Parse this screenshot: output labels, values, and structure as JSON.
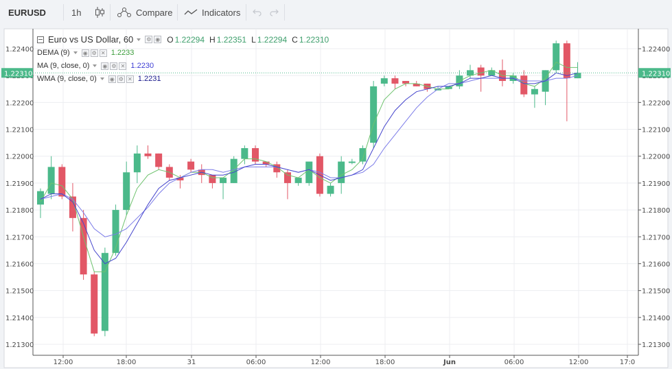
{
  "toolbar": {
    "symbol": "EURUSD",
    "interval": "1h",
    "compare_label": "Compare",
    "indicators_label": "Indicators"
  },
  "legend": {
    "title": "Euro vs US Dollar, 60",
    "o_label": "O",
    "o_value": "1.22294",
    "h_label": "H",
    "h_value": "1.22351",
    "l_label": "L",
    "l_value": "1.22294",
    "c_label": "C",
    "c_value": "1.22310",
    "indicators": [
      {
        "name": "DEMA (9)",
        "value": "1.2233",
        "color": "#3c9d3c"
      },
      {
        "name": "MA (9, close, 0)",
        "value": "1.2230",
        "color": "#3e3ed4"
      },
      {
        "name": "WMA (9, close, 0)",
        "value": "1.2231",
        "color": "#1a1a8c"
      }
    ]
  },
  "colors": {
    "up": "#4bb98a",
    "down": "#e25766",
    "dema": "#6ec26e",
    "ma": "#7b7be8",
    "wma": "#4444cc",
    "last_price_bg": "#4bb98a"
  },
  "chart_data": {
    "type": "candlestick",
    "ylim": [
      1.2125,
      1.225
    ],
    "y_ticks": [
      "1.21300",
      "1.21400",
      "1.21500",
      "1.21600",
      "1.21700",
      "1.21800",
      "1.21900",
      "1.22000",
      "1.22100",
      "1.22200",
      "1.22300",
      "1.22400"
    ],
    "x_ticks": [
      "12:00",
      "18:00",
      "31",
      "06:00",
      "12:00",
      "18:00",
      "Jun",
      "06:00",
      "12:00",
      "17:0"
    ],
    "last_price": "1.22310",
    "candles": [
      {
        "o": 1.2182,
        "h": 1.2188,
        "l": 1.2177,
        "c": 1.2187
      },
      {
        "o": 1.2186,
        "h": 1.22,
        "l": 1.2184,
        "c": 1.2196
      },
      {
        "o": 1.2196,
        "h": 1.2197,
        "l": 1.2184,
        "c": 1.2185
      },
      {
        "o": 1.2185,
        "h": 1.219,
        "l": 1.2172,
        "c": 1.2177
      },
      {
        "o": 1.2177,
        "h": 1.218,
        "l": 1.2154,
        "c": 1.2156
      },
      {
        "o": 1.2156,
        "h": 1.2157,
        "l": 1.2133,
        "c": 1.2134
      },
      {
        "o": 1.2135,
        "h": 1.2166,
        "l": 1.2133,
        "c": 1.2164
      },
      {
        "o": 1.2164,
        "h": 1.2182,
        "l": 1.2163,
        "c": 1.218
      },
      {
        "o": 1.218,
        "h": 1.2198,
        "l": 1.2178,
        "c": 1.2194
      },
      {
        "o": 1.2194,
        "h": 1.2204,
        "l": 1.219,
        "c": 1.2201
      },
      {
        "o": 1.2201,
        "h": 1.2204,
        "l": 1.2199,
        "c": 1.22
      },
      {
        "o": 1.2201,
        "h": 1.2201,
        "l": 1.2195,
        "c": 1.2196
      },
      {
        "o": 1.2196,
        "h": 1.2197,
        "l": 1.2191,
        "c": 1.2192
      },
      {
        "o": 1.2192,
        "h": 1.2193,
        "l": 1.2188,
        "c": 1.2191
      },
      {
        "o": 1.2198,
        "h": 1.2199,
        "l": 1.2194,
        "c": 1.2195
      },
      {
        "o": 1.2195,
        "h": 1.2197,
        "l": 1.219,
        "c": 1.2193
      },
      {
        "o": 1.2193,
        "h": 1.2193,
        "l": 1.2188,
        "c": 1.219
      },
      {
        "o": 1.219,
        "h": 1.2192,
        "l": 1.2184,
        "c": 1.2192
      },
      {
        "o": 1.219,
        "h": 1.22,
        "l": 1.219,
        "c": 1.2199
      },
      {
        "o": 1.2199,
        "h": 1.2204,
        "l": 1.2197,
        "c": 1.2203
      },
      {
        "o": 1.2203,
        "h": 1.2204,
        "l": 1.2197,
        "c": 1.2198
      },
      {
        "o": 1.2198,
        "h": 1.2198,
        "l": 1.2196,
        "c": 1.2197
      },
      {
        "o": 1.2197,
        "h": 1.2198,
        "l": 1.2192,
        "c": 1.2194
      },
      {
        "o": 1.2194,
        "h": 1.2195,
        "l": 1.2184,
        "c": 1.219
      },
      {
        "o": 1.219,
        "h": 1.2192,
        "l": 1.2189,
        "c": 1.2192
      },
      {
        "o": 1.219,
        "h": 1.2197,
        "l": 1.2189,
        "c": 1.2198
      },
      {
        "o": 1.22,
        "h": 1.2201,
        "l": 1.2185,
        "c": 1.2186
      },
      {
        "o": 1.2186,
        "h": 1.219,
        "l": 1.2185,
        "c": 1.2189
      },
      {
        "o": 1.219,
        "h": 1.22,
        "l": 1.2186,
        "c": 1.2198
      },
      {
        "o": 1.2198,
        "h": 1.2199,
        "l": 1.2197,
        "c": 1.2198
      },
      {
        "o": 1.2198,
        "h": 1.2204,
        "l": 1.2197,
        "c": 1.2203
      },
      {
        "o": 1.2205,
        "h": 1.2228,
        "l": 1.2203,
        "c": 1.2226
      },
      {
        "o": 1.2227,
        "h": 1.223,
        "l": 1.2226,
        "c": 1.2229
      },
      {
        "o": 1.2229,
        "h": 1.223,
        "l": 1.2225,
        "c": 1.2227
      },
      {
        "o": 1.2228,
        "h": 1.2228,
        "l": 1.2226,
        "c": 1.2227
      },
      {
        "o": 1.2227,
        "h": 1.2228,
        "l": 1.2226,
        "c": 1.2226
      },
      {
        "o": 1.2227,
        "h": 1.2227,
        "l": 1.2224,
        "c": 1.2225
      },
      {
        "o": 1.2225,
        "h": 1.2226,
        "l": 1.2225,
        "c": 1.2225
      },
      {
        "o": 1.2225,
        "h": 1.2226,
        "l": 1.2225,
        "c": 1.2226
      },
      {
        "o": 1.2226,
        "h": 1.2232,
        "l": 1.2225,
        "c": 1.223
      },
      {
        "o": 1.223,
        "h": 1.2234,
        "l": 1.2229,
        "c": 1.2232
      },
      {
        "o": 1.2233,
        "h": 1.2234,
        "l": 1.2224,
        "c": 1.223
      },
      {
        "o": 1.223,
        "h": 1.2233,
        "l": 1.223,
        "c": 1.2232
      },
      {
        "o": 1.2232,
        "h": 1.2236,
        "l": 1.2226,
        "c": 1.2228
      },
      {
        "o": 1.2228,
        "h": 1.2231,
        "l": 1.2227,
        "c": 1.223
      },
      {
        "o": 1.223,
        "h": 1.2232,
        "l": 1.2222,
        "c": 1.2223
      },
      {
        "o": 1.2223,
        "h": 1.2226,
        "l": 1.2218,
        "c": 1.2225
      },
      {
        "o": 1.2224,
        "h": 1.2232,
        "l": 1.2219,
        "c": 1.2232
      },
      {
        "o": 1.2232,
        "h": 1.2243,
        "l": 1.2231,
        "c": 1.2242
      },
      {
        "o": 1.2242,
        "h": 1.2243,
        "l": 1.2213,
        "c": 1.2229
      },
      {
        "o": 1.2229,
        "h": 1.2235,
        "l": 1.2229,
        "c": 1.2231
      }
    ],
    "series": [
      {
        "name": "DEMA (9)",
        "values": [
          1.2183,
          1.219,
          1.2189,
          1.2184,
          1.217,
          1.2157,
          1.2157,
          1.2166,
          1.2178,
          1.2188,
          1.2193,
          1.2195,
          1.2194,
          1.2192,
          1.2194,
          1.2194,
          1.2192,
          1.2192,
          1.2195,
          1.2199,
          1.2199,
          1.2198,
          1.2196,
          1.2193,
          1.2192,
          1.2195,
          1.2192,
          1.219,
          1.2193,
          1.2195,
          1.2199,
          1.2212,
          1.2221,
          1.2225,
          1.2227,
          1.2227,
          1.2226,
          1.2225,
          1.2225,
          1.2228,
          1.223,
          1.2231,
          1.2232,
          1.223,
          1.223,
          1.2227,
          1.2226,
          1.2229,
          1.2235,
          1.2233,
          1.2233
        ]
      },
      {
        "name": "MA (9, close, 0)",
        "values": [
          1.2184,
          1.2185,
          1.2186,
          1.2184,
          1.2179,
          1.2173,
          1.217,
          1.2171,
          1.2173,
          1.2177,
          1.2181,
          1.2186,
          1.219,
          1.2192,
          1.2194,
          1.2195,
          1.2195,
          1.2194,
          1.2195,
          1.2196,
          1.2196,
          1.2196,
          1.2196,
          1.2195,
          1.2194,
          1.2195,
          1.2194,
          1.2192,
          1.2192,
          1.2193,
          1.2194,
          1.2197,
          1.2203,
          1.2208,
          1.2213,
          1.2218,
          1.2222,
          1.2225,
          1.2227,
          1.2227,
          1.2228,
          1.2229,
          1.2229,
          1.2229,
          1.2229,
          1.2228,
          1.2228,
          1.2228,
          1.2229,
          1.2229,
          1.223
        ]
      },
      {
        "name": "WMA (9, close, 0)",
        "values": [
          1.2184,
          1.2186,
          1.2186,
          1.2183,
          1.2175,
          1.2165,
          1.216,
          1.2162,
          1.2168,
          1.2175,
          1.2182,
          1.2188,
          1.2191,
          1.2192,
          1.2193,
          1.2194,
          1.2193,
          1.2193,
          1.2194,
          1.2196,
          1.2197,
          1.2197,
          1.2196,
          1.2195,
          1.2194,
          1.2195,
          1.2193,
          1.2191,
          1.2192,
          1.2193,
          1.2195,
          1.2203,
          1.2211,
          1.2217,
          1.2221,
          1.2224,
          1.2225,
          1.2226,
          1.2226,
          1.2227,
          1.2229,
          1.2229,
          1.223,
          1.2229,
          1.2229,
          1.2227,
          1.2227,
          1.2228,
          1.2231,
          1.223,
          1.2231
        ]
      }
    ]
  }
}
